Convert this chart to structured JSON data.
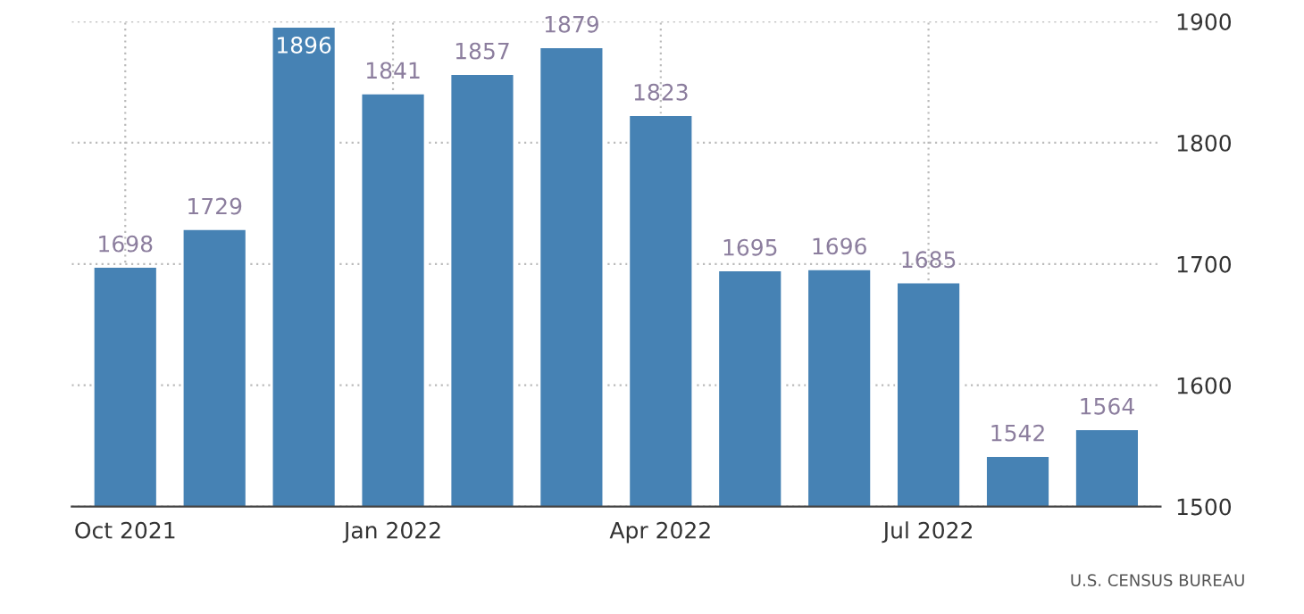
{
  "chart_data": {
    "type": "bar",
    "categories": [
      "Oct 2021",
      null,
      null,
      "Jan 2022",
      null,
      null,
      "Apr 2022",
      null,
      null,
      "Jul 2022",
      null,
      null
    ],
    "values": [
      1698,
      1729,
      1896,
      1841,
      1857,
      1879,
      1823,
      1695,
      1696,
      1685,
      1542,
      1564
    ],
    "color": "#4682b4",
    "ylim": [
      1500,
      1900
    ],
    "yticks": [
      1500,
      1600,
      1700,
      1800,
      1900
    ],
    "grid": true,
    "data_labels": true,
    "annotations": [
      "U.S. CENSUS BUREAU"
    ]
  }
}
